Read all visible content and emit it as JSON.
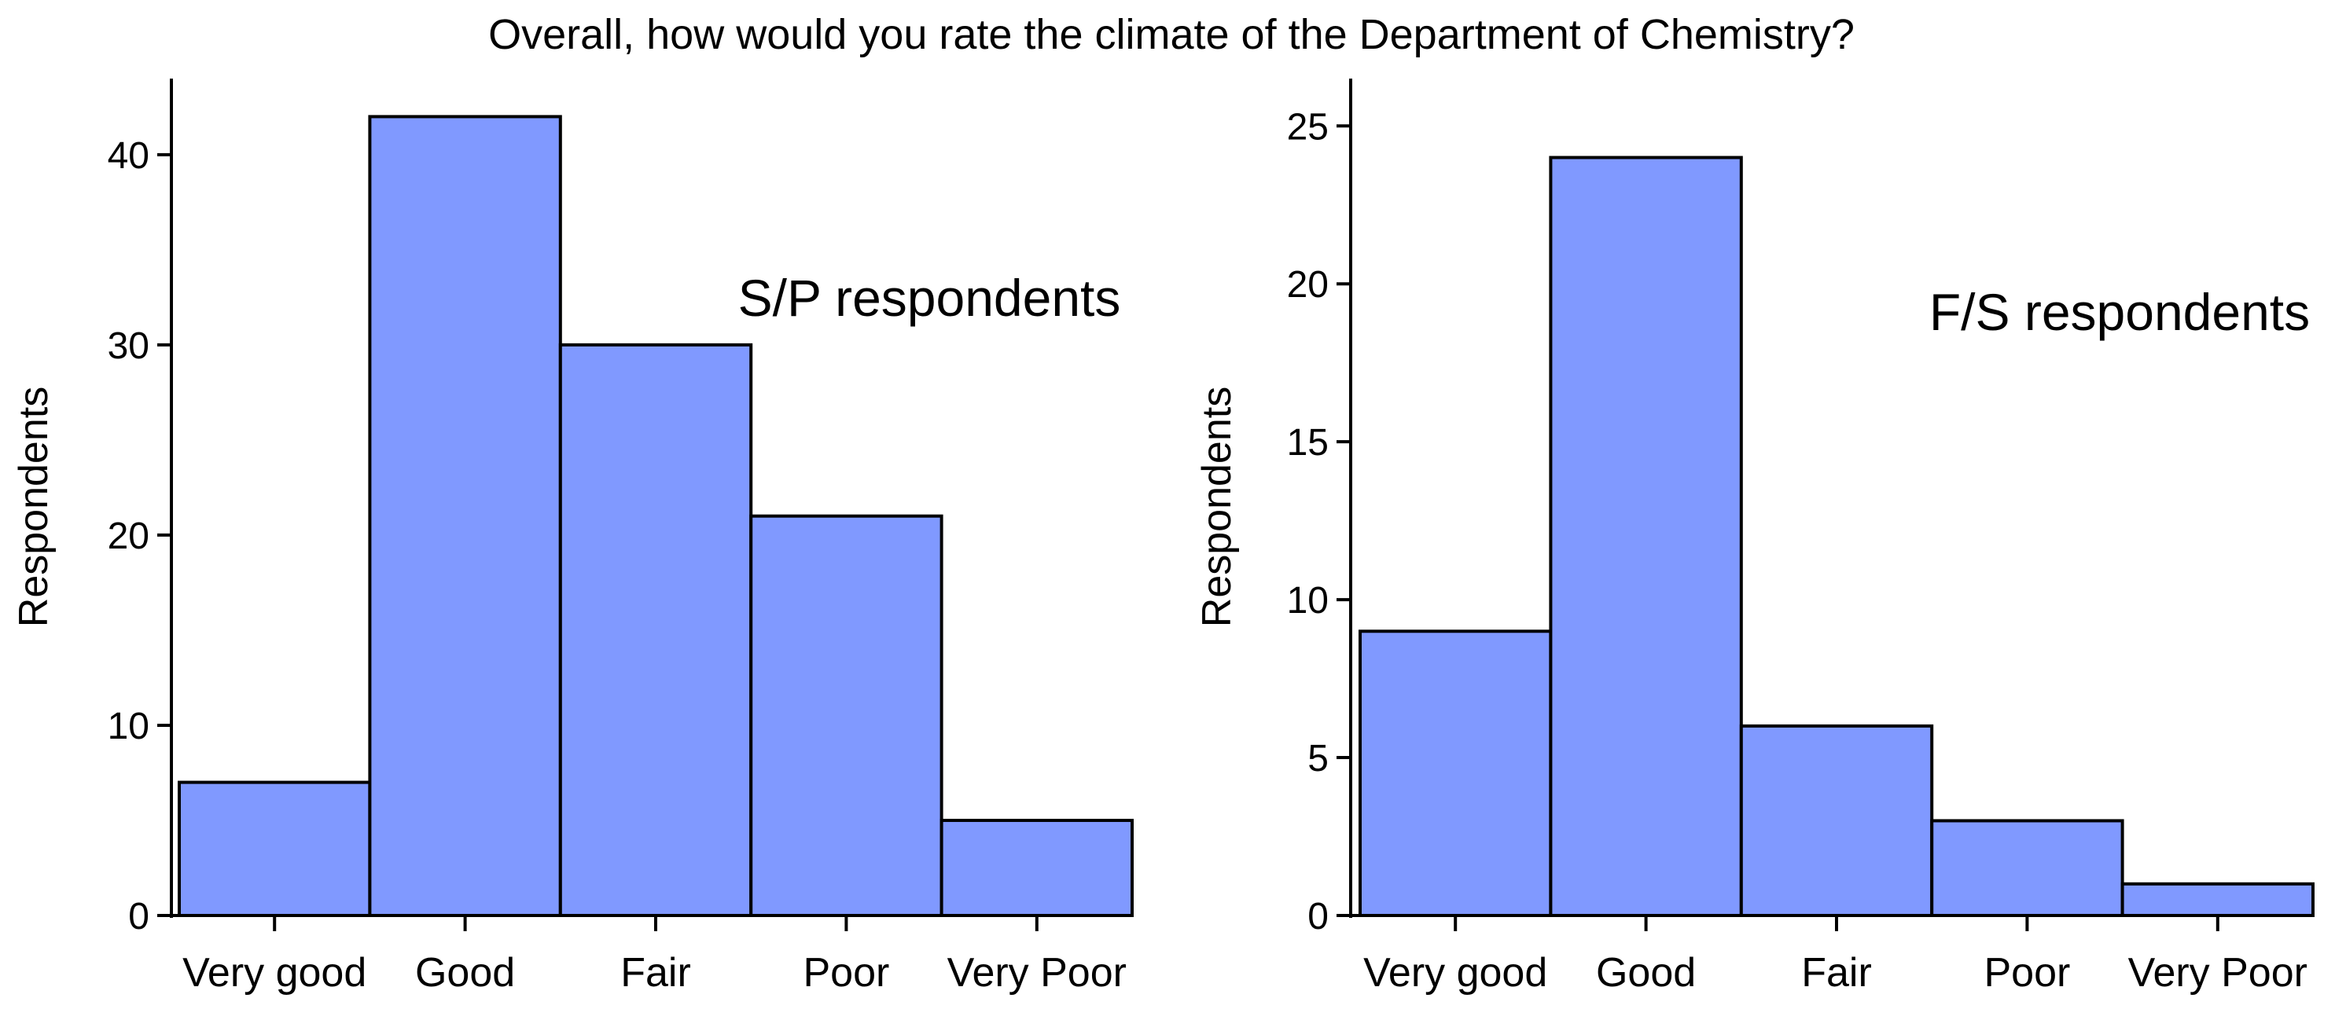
{
  "page_title": "Overall, how would you rate the climate of the Department of Chemistry?",
  "colors": {
    "bar_fill": "#8099FF",
    "bar_stroke": "#000000",
    "axis": "#000000",
    "background": "#FFFFFF"
  },
  "chart_data": [
    {
      "type": "bar",
      "title": "S/P respondents",
      "xlabel": "",
      "ylabel": "Respondents",
      "categories": [
        "Very good",
        "Good",
        "Fair",
        "Poor",
        "Very Poor"
      ],
      "values": [
        7,
        42,
        30,
        21,
        5
      ],
      "ylim": [
        0,
        44
      ],
      "yticks": [
        0,
        10,
        20,
        30,
        40
      ],
      "grid": false,
      "legend": "none"
    },
    {
      "type": "bar",
      "title": "F/S respondents",
      "xlabel": "",
      "ylabel": "Respondents",
      "categories": [
        "Very good",
        "Good",
        "Fair",
        "Poor",
        "Very Poor"
      ],
      "values": [
        9,
        24,
        6,
        3,
        1
      ],
      "ylim": [
        0,
        26.5
      ],
      "yticks": [
        0,
        5,
        10,
        15,
        20,
        25
      ],
      "grid": false,
      "legend": "none"
    }
  ]
}
